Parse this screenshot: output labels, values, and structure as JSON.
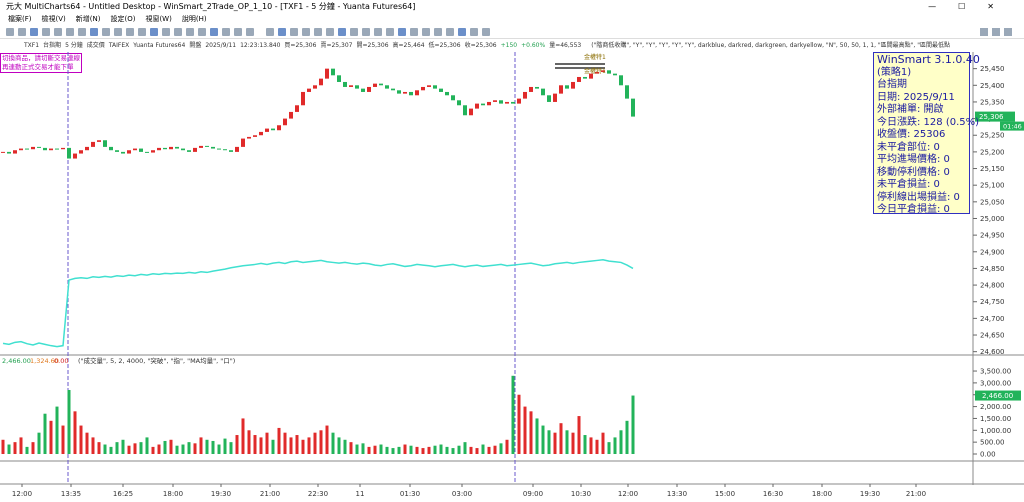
{
  "window": {
    "title": "元大 MultiCharts64 - Untitled Desktop - WinSmart_2Trade_OP_1_10 - [TXF1 - 5 分鐘 - Yuanta Futures64]"
  },
  "menu": [
    "檔案(F)",
    "檢視(V)",
    "新增(N)",
    "設定(O)",
    "視窗(W)",
    "說明(H)"
  ],
  "status": [
    "TXF1",
    "台指期",
    "5 分鐘",
    "成交價",
    "TAIFEX",
    "Yuanta Futures64",
    "開盤",
    "2025/9/11",
    "12:23:13.840",
    "買=25,306",
    "賣=25,307",
    "開=25,306",
    "高=25,464",
    "低=25,306",
    "收=25,306",
    "+150",
    "+0.60%",
    "量=46,553"
  ],
  "strategy_text": "(\"階商低收購\", \"Y\", \"Y\", \"Y\", \"Y\", \"Y\", darkblue, darkred, darkgreen, darkyellow, \"N\", 50, 50, 1, 1, \"區間最高點\", \"區間最低點",
  "warning": [
    "切換商品，請切斷交易連線",
    "再連動正式交易才能下單"
  ],
  "marker_labels": [
    "金權特1",
    "金權特1"
  ],
  "info_box": [
    "WinSmart 3.1.0.40",
    "(策略1)",
    "台指期",
    "日期: 2025/9/11",
    "外部補單: 開啟",
    "今日漲跌: 128 (0.5%)",
    "收盤價: 25306",
    "未平倉部位: 0",
    "平均進場價格: 0",
    "移動停利價格: 0",
    "未平倉損益: 0",
    "停利線出場損益: 0",
    "今日平倉損益: 0"
  ],
  "price_chart": {
    "type": "candlestick",
    "up_color": "#e02a2a",
    "down_color": "#22b35a",
    "line_color": "#40e0d0",
    "ylim": [
      24590,
      25500
    ],
    "yticks": [
      {
        "value": 25450,
        "label": "25,450"
      },
      {
        "value": 25400,
        "label": "25,400"
      },
      {
        "value": 25350,
        "label": "25,350"
      },
      {
        "value": 25300,
        "label": "25,300"
      },
      {
        "value": 25250,
        "label": "25,250"
      },
      {
        "value": 25200,
        "label": "25,200"
      },
      {
        "value": 25150,
        "label": "25,150"
      },
      {
        "value": 25100,
        "label": "25,100"
      },
      {
        "value": 25050,
        "label": "25,050"
      },
      {
        "value": 25000,
        "label": "25,000"
      },
      {
        "value": 24950,
        "label": "24,950"
      },
      {
        "value": 24900,
        "label": "24,900"
      },
      {
        "value": 24850,
        "label": "24,850"
      },
      {
        "value": 24800,
        "label": "24,800"
      },
      {
        "value": 24750,
        "label": "24,750"
      },
      {
        "value": 24700,
        "label": "24,700"
      },
      {
        "value": 24650,
        "label": "24,650"
      },
      {
        "value": 24600,
        "label": "24,600"
      }
    ],
    "last": {
      "value": 25306,
      "label": "25,306"
    },
    "countdown": "01:46",
    "close": [
      25200,
      25195,
      25205,
      25210,
      25208,
      25215,
      25212,
      25205,
      25210,
      25208,
      25212,
      25180,
      25195,
      25205,
      25215,
      25230,
      25235,
      25215,
      25205,
      25200,
      25195,
      25205,
      25210,
      25200,
      25198,
      25205,
      25212,
      25208,
      25215,
      25210,
      25205,
      25200,
      25212,
      25218,
      25215,
      25210,
      25208,
      25205,
      25200,
      25215,
      25240,
      25245,
      25250,
      25260,
      25270,
      25265,
      25280,
      25300,
      25320,
      25340,
      25380,
      25390,
      25400,
      25420,
      25450,
      25430,
      25410,
      25395,
      25400,
      25390,
      25380,
      25395,
      25405,
      25400,
      25390,
      25385,
      25375,
      25380,
      25370,
      25385,
      25395,
      25400,
      25390,
      25380,
      25370,
      25355,
      25340,
      25310,
      25330,
      25345,
      25340,
      25350,
      25355,
      25345,
      25350,
      25345,
      25360,
      25380,
      25395,
      25390,
      25370,
      25350,
      25375,
      25400,
      25390,
      25410,
      25425,
      25420,
      25435,
      25440,
      25445,
      25435,
      25430,
      25400,
      25360,
      25306
    ],
    "line": [
      24625,
      24622,
      24628,
      24630,
      24624,
      24620,
      24626,
      24622,
      24618,
      24615,
      24618,
      24815,
      24820,
      24822,
      24820,
      24825,
      24823,
      24826,
      24824,
      24828,
      24826,
      24830,
      24828,
      24832,
      24830,
      24834,
      24832,
      24835,
      24834,
      24836,
      24835,
      24838,
      24836,
      24840,
      24838,
      24842,
      24845,
      24848,
      24852,
      24855,
      24858,
      24860,
      24862,
      24865,
      24862,
      24866,
      24868,
      24865,
      24870,
      24872,
      24868,
      24870,
      24872,
      24874,
      24870,
      24868,
      24866,
      24868,
      24865,
      24863,
      24866,
      24864,
      24860,
      24858,
      24862,
      24864,
      24860,
      24856,
      24858,
      24862,
      24860,
      24858,
      24855,
      24858,
      24860,
      24862,
      24858,
      24855,
      24858,
      24860,
      24856,
      24858,
      24860,
      24862,
      24858,
      24860,
      24862,
      24864,
      24866,
      24862,
      24858,
      24860,
      24864,
      24866,
      24868,
      24865,
      24868,
      24870,
      24872,
      24874,
      24876,
      24872,
      24870,
      24868,
      24860,
      24850
    ]
  },
  "volume_chart": {
    "type": "bar",
    "header": [
      "2,466.00",
      "1,324.60",
      "0.00"
    ],
    "indicator": "(\"成交量\", 5, 2, 4000, \"突破\", \"指\", \"MA均量\", \"口\")",
    "ylim": [
      0,
      4050
    ],
    "yticks": [
      {
        "value": 3500,
        "label": "3,500.00"
      },
      {
        "value": 3000,
        "label": "3,000.00"
      },
      {
        "value": 2500,
        "label": "2,500.00"
      },
      {
        "value": 2000,
        "label": "2,000.00"
      },
      {
        "value": 1500,
        "label": "1,500.00"
      },
      {
        "value": 1000,
        "label": "1,000.00"
      },
      {
        "value": 500,
        "label": "500.00"
      },
      {
        "value": 0,
        "label": "0.00"
      }
    ],
    "last": {
      "value": 2466,
      "label": "2,466.00"
    },
    "values": [
      600,
      400,
      500,
      700,
      300,
      500,
      900,
      1700,
      1400,
      2000,
      1200,
      2700,
      1800,
      1200,
      900,
      700,
      500,
      400,
      300,
      500,
      600,
      350,
      450,
      500,
      700,
      300,
      400,
      550,
      600,
      350,
      400,
      500,
      450,
      700,
      600,
      550,
      400,
      650,
      500,
      800,
      1500,
      1000,
      800,
      700,
      900,
      600,
      1100,
      900,
      700,
      800,
      600,
      700,
      900,
      1000,
      1200,
      900,
      700,
      600,
      500,
      400,
      450,
      300,
      350,
      400,
      300,
      250,
      300,
      400,
      350,
      300,
      250,
      300,
      350,
      400,
      300,
      250,
      350,
      500,
      300,
      250,
      400,
      300,
      350,
      450,
      600,
      3300,
      2500,
      2000,
      1800,
      1500,
      1200,
      1000,
      900,
      1300,
      1000,
      900,
      1600,
      800,
      700,
      600,
      900,
      500,
      700,
      1000,
      1400,
      2466
    ]
  },
  "time_labels": [
    "12:00",
    "13:35",
    "16:25",
    "18:00",
    "19:30",
    "21:00",
    "22:30",
    "11",
    "01:30",
    "03:00",
    "09:00",
    "10:30",
    "12:00",
    "13:30",
    "15:00",
    "16:30",
    "18:00",
    "19:30",
    "21:00"
  ]
}
